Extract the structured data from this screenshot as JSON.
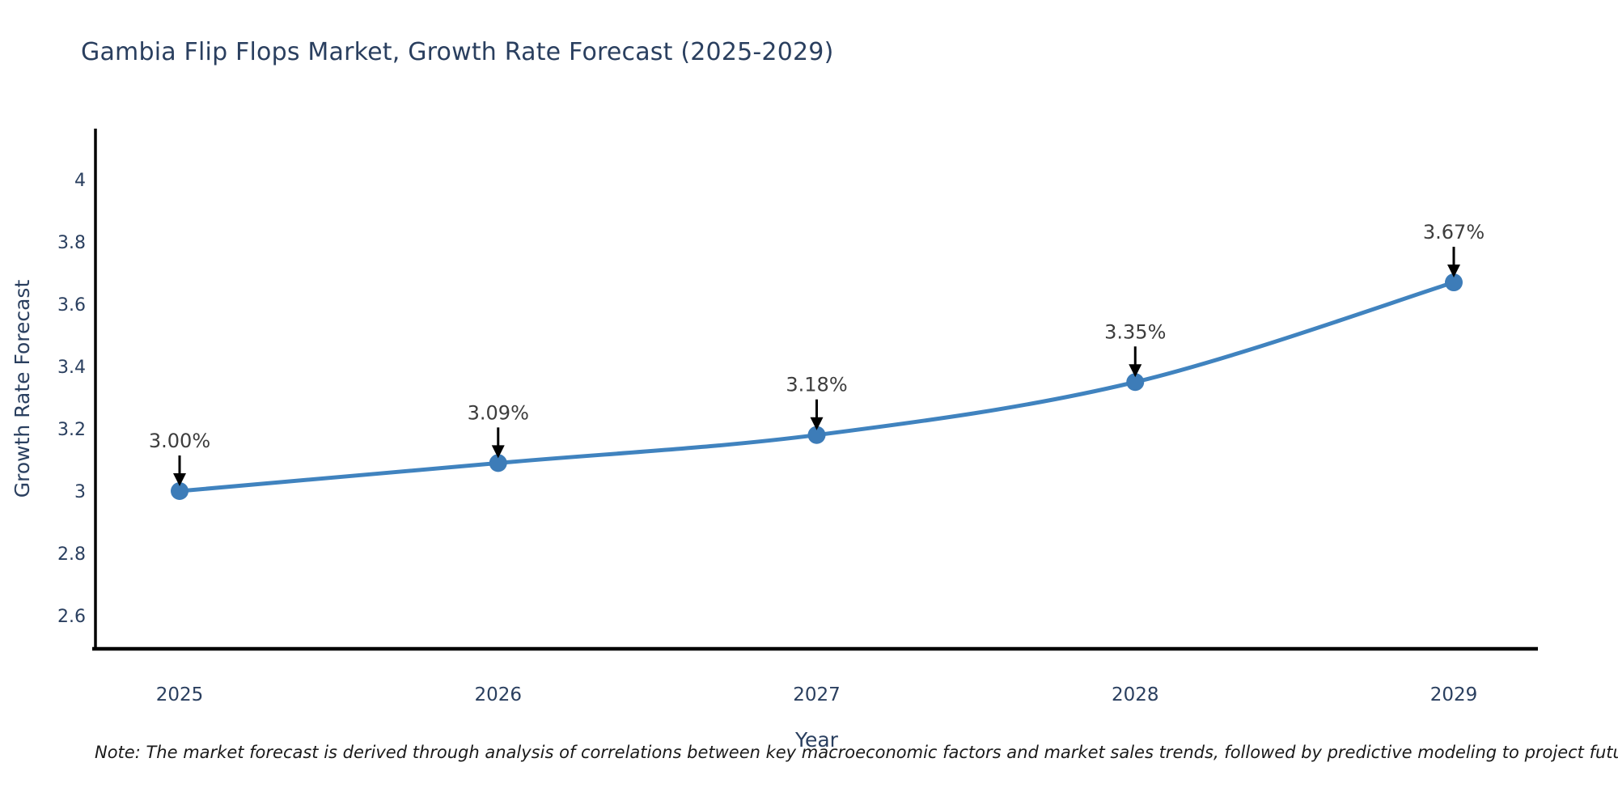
{
  "note": "Note: The market forecast is derived through analysis of correlations between key macroeconomic factors and market sales trends, followed by predictive modeling to project future sales",
  "chart_data": {
    "type": "line",
    "title": "Gambia Flip Flops Market, Growth Rate Forecast (2025-2029)",
    "xlabel": "Year",
    "ylabel": "Growth Rate Forecast",
    "x": [
      2025,
      2026,
      2027,
      2028,
      2029
    ],
    "y": [
      3.0,
      3.09,
      3.18,
      3.35,
      3.67
    ],
    "point_labels": [
      "3.00%",
      "3.09%",
      "3.18%",
      "3.35%",
      "3.67%"
    ],
    "x_ticks": [
      2025,
      2026,
      2027,
      2028,
      2029
    ],
    "y_ticks": [
      4,
      3.8,
      3.6,
      3.4,
      3.2,
      3,
      2.8,
      2.6
    ],
    "x_range": [
      2024.74,
      2029.26
    ],
    "y_range": [
      2.49,
      4.16
    ],
    "grid": false,
    "legend": false,
    "smooth": true,
    "marker_size": 11,
    "colors": {
      "line": "#4083bf",
      "marker": "#3d7cb8",
      "axis": "#000000",
      "title": "#2a3f5f",
      "tick": "#2a3f5f",
      "axis_title": "#2a3f5f",
      "annotation": "#3d3d3d",
      "arrow": "#000000",
      "note_text": "#1a1a1a",
      "background": "#ffffff"
    }
  }
}
